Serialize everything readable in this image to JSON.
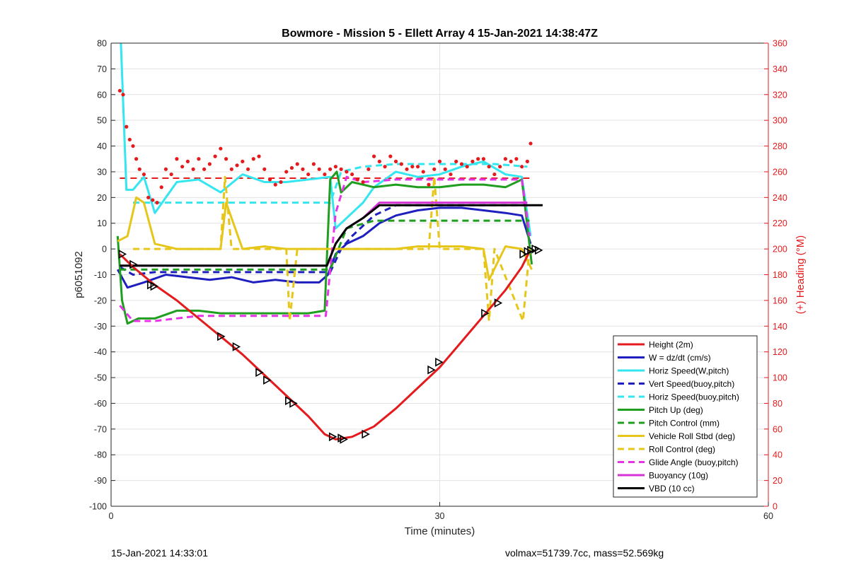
{
  "chart_data": {
    "type": "line",
    "title": "Bowmore - Mission 5 - Ellett Array 4 15-Jan-2021 14:38:47Z",
    "xlabel": "Time (minutes)",
    "ylabel": "p6051092",
    "y2label": "(+) Heading (°M)",
    "xlim": [
      0,
      60
    ],
    "ylim": [
      -100,
      80
    ],
    "y2lim": [
      0,
      360
    ],
    "xticks": [
      0,
      30,
      60
    ],
    "yticks": [
      -100,
      -90,
      -80,
      -70,
      -60,
      -50,
      -40,
      -30,
      -20,
      -10,
      0,
      10,
      20,
      30,
      40,
      50,
      60,
      70,
      80
    ],
    "y2ticks": [
      0,
      20,
      40,
      60,
      80,
      100,
      120,
      140,
      160,
      180,
      200,
      220,
      240,
      260,
      280,
      300,
      320,
      340,
      360
    ],
    "grid": true,
    "legend_position": "bottom-right",
    "colors": {
      "height": "#e41a1c",
      "w": "#1f1fbf",
      "horiz_w": "#33e6f0",
      "pitch": "#1f9e1f",
      "roll": "#e6c619",
      "glide": "#e633e6",
      "buoy": "#d633d6",
      "vbd": "#000000",
      "heading": "#e41a1c",
      "axis2": "#e41a1c"
    },
    "series": [
      {
        "name": "Height (2m)",
        "style": "solid",
        "color": "#e41a1c",
        "x": [
          0.8,
          2,
          4,
          6,
          8,
          10,
          12,
          14,
          16,
          18,
          19.5,
          20.5,
          22,
          24,
          26,
          28,
          30,
          32,
          34,
          36,
          37.5,
          38.2
        ],
        "y": [
          -2,
          -7,
          -14,
          -20,
          -27,
          -34,
          -41,
          -49,
          -57,
          -65,
          -72,
          -74,
          -73,
          -69,
          -62,
          -54,
          -46,
          -36,
          -26,
          -16,
          -7,
          -1
        ]
      },
      {
        "name": "W = dz/dt (cm/s)",
        "style": "solid",
        "color": "#1f1fbf",
        "x": [
          0.6,
          1.5,
          3,
          5,
          7,
          9,
          11,
          13,
          15,
          17,
          19,
          19.8,
          20.5,
          21.5,
          23,
          24.5,
          26,
          28,
          30,
          32,
          34,
          36,
          37.5,
          38.3
        ],
        "y": [
          -8,
          -15,
          -13,
          -10,
          -11,
          -12,
          -11,
          -13,
          -12,
          -13,
          -13,
          -10,
          -2,
          2,
          5,
          10,
          13,
          15,
          16,
          16,
          15,
          14,
          13,
          2
        ]
      },
      {
        "name": "Horiz Speed(W,pitch)",
        "style": "solid",
        "color": "#33e6f0",
        "x": [
          0.9,
          1.4,
          2,
          3,
          4,
          5,
          6,
          8,
          10,
          12,
          14,
          16,
          18,
          20,
          20.5,
          21,
          22,
          23,
          24,
          26,
          28,
          30,
          32,
          34,
          36,
          37.5,
          38.3
        ],
        "y": [
          80,
          23,
          23,
          28,
          14,
          20,
          26,
          27,
          22,
          29,
          26,
          26,
          27,
          28,
          8,
          10,
          14,
          18,
          24,
          30,
          28,
          29,
          32,
          34,
          29,
          28,
          5
        ]
      },
      {
        "name": "Vert Speed(buoy,pitch)",
        "style": "dash",
        "color": "#1f1fbf",
        "x": [
          0.8,
          2,
          4,
          6,
          8,
          10,
          12,
          14,
          16,
          18,
          20,
          21,
          22,
          24,
          26,
          28,
          30,
          32,
          34,
          36,
          38
        ],
        "y": [
          -7,
          -10,
          -9,
          -9,
          -9,
          -9,
          -9,
          -9,
          -9,
          -9,
          -9,
          0,
          5,
          13,
          17,
          17,
          17,
          17,
          17,
          17,
          17
        ]
      },
      {
        "name": "Horiz Speed(buoy,pitch)",
        "style": "dash",
        "color": "#33e6f0",
        "x": [
          2,
          5,
          8,
          11,
          14,
          17,
          20,
          21,
          23,
          26,
          29,
          32,
          35,
          38
        ],
        "y": [
          18,
          18,
          18,
          18,
          18,
          18,
          18,
          30,
          32,
          33,
          33,
          33,
          33,
          32
        ]
      },
      {
        "name": "Pitch Up (deg)",
        "style": "solid",
        "color": "#1f9e1f",
        "x": [
          0.6,
          1,
          1.5,
          2.5,
          4,
          6,
          8,
          10,
          12,
          14,
          16,
          18,
          19.5,
          20,
          20.6,
          21,
          22,
          24,
          26,
          28,
          30,
          32,
          34,
          36,
          37.5,
          38.4
        ],
        "y": [
          5,
          -20,
          -29,
          -27,
          -27,
          -24,
          -24,
          -25,
          -25,
          -25,
          -25,
          -25,
          -24,
          27,
          30,
          22,
          26,
          24,
          25,
          24,
          24,
          25,
          25,
          24,
          27,
          -6
        ]
      },
      {
        "name": "Pitch Control (mm)",
        "style": "dash",
        "color": "#1f9e1f",
        "x": [
          0.8,
          4,
          8,
          12,
          16,
          20,
          21.5,
          24,
          28,
          32,
          36,
          38.2
        ],
        "y": [
          -8,
          -8,
          -8,
          -8,
          -8,
          -8,
          8,
          11,
          11,
          11,
          11,
          11
        ]
      },
      {
        "name": "Vehicle Roll Stbd (deg)",
        "style": "solid",
        "color": "#e6c619",
        "x": [
          0.6,
          1.5,
          2.3,
          3,
          4,
          6,
          8,
          10,
          10.5,
          12,
          14,
          16,
          18,
          20,
          22,
          24,
          26,
          28,
          30,
          32,
          34,
          34.5,
          36,
          37.5,
          38.4
        ],
        "y": [
          3,
          5,
          20,
          18,
          2,
          0,
          0,
          0,
          18,
          0,
          1,
          0,
          0,
          0,
          0,
          0,
          0,
          1,
          1,
          1,
          0,
          -12,
          1,
          0,
          -8
        ]
      },
      {
        "name": "Roll Control (deg)",
        "style": "dash",
        "color": "#e6c619",
        "x": [
          2,
          5,
          8,
          10,
          10.4,
          11,
          14,
          16,
          16.3,
          17,
          20,
          23,
          26,
          29,
          29.5,
          30,
          33,
          34,
          34.5,
          35,
          37.6,
          38.2
        ],
        "y": [
          0,
          0,
          0,
          0,
          28,
          0,
          0,
          0,
          -28,
          0,
          0,
          0,
          0,
          0,
          28,
          0,
          0,
          0,
          -28,
          0,
          -28,
          0
        ]
      },
      {
        "name": "Glide Angle (buoy,pitch)",
        "style": "dash",
        "color": "#e633e6",
        "x": [
          0.8,
          2,
          4,
          8,
          12,
          16,
          19.6,
          20.5,
          21.5,
          23,
          26,
          30,
          34,
          37.5,
          38.2
        ],
        "y": [
          -22,
          -28,
          -28,
          -26,
          -26,
          -26,
          -26,
          14,
          28,
          26,
          27,
          27,
          27,
          27,
          5
        ]
      },
      {
        "name": "Buoyancy (10g)",
        "style": "solid",
        "color": "#d633d6",
        "x": [
          0.8,
          4,
          8,
          12,
          16,
          19.7,
          20.5,
          21.5,
          23,
          24.5,
          30,
          36,
          38
        ],
        "y": [
          -6.5,
          -6.5,
          -6.5,
          -6.5,
          -6.5,
          -6.5,
          2,
          8,
          12,
          18,
          18,
          18,
          18
        ]
      },
      {
        "name": "VBD (10 cc)",
        "style": "solid",
        "color": "#000000",
        "x": [
          0.8,
          4,
          8,
          12,
          16,
          19.7,
          20.5,
          21.5,
          23,
          24.5,
          30,
          36,
          39.4
        ],
        "y": [
          -6.5,
          -6.5,
          -6.5,
          -6.5,
          -6.5,
          -6.5,
          2,
          8,
          12,
          17,
          17,
          17,
          17
        ]
      }
    ],
    "reference_lines": [
      {
        "name": "Heading target",
        "style": "dash",
        "color": "#e41a1c",
        "axis": "y2",
        "y": 255,
        "x": [
          0.8,
          38.2
        ]
      }
    ],
    "heading_points": {
      "axis": "y2",
      "color": "#e41a1c",
      "x": [
        0.8,
        1.1,
        1.4,
        1.7,
        2,
        2.3,
        2.6,
        3,
        3.4,
        3.8,
        4.2,
        4.6,
        5,
        5.5,
        6,
        6.5,
        7,
        7.5,
        8,
        8.5,
        9,
        9.5,
        10,
        10.5,
        11,
        11.5,
        12,
        12.5,
        13,
        13.5,
        14,
        14.5,
        15,
        15.5,
        16,
        16.5,
        17,
        17.5,
        18,
        18.5,
        19,
        19.5,
        20,
        20.5,
        21,
        21.5,
        22,
        22.5,
        23,
        23.5,
        24,
        24.5,
        25,
        25.5,
        26,
        26.5,
        27,
        27.5,
        28,
        28.5,
        29,
        29.5,
        30,
        30.5,
        31,
        31.5,
        32,
        32.5,
        33,
        33.5,
        34,
        34.5,
        35,
        35.5,
        36,
        36.5,
        37,
        37.5,
        38,
        38.3
      ],
      "y": [
        323,
        320,
        295,
        285,
        280,
        270,
        262,
        258,
        240,
        238,
        236,
        248,
        262,
        258,
        270,
        264,
        268,
        262,
        270,
        262,
        266,
        272,
        278,
        270,
        262,
        265,
        268,
        262,
        270,
        272,
        262,
        254,
        250,
        252,
        260,
        263,
        266,
        262,
        258,
        266,
        262,
        258,
        262,
        264,
        262,
        260,
        258,
        254,
        252,
        262,
        272,
        268,
        264,
        272,
        268,
        266,
        262,
        264,
        264,
        260,
        250,
        262,
        268,
        262,
        258,
        268,
        266,
        264,
        268,
        270,
        270,
        264,
        258,
        264,
        270,
        268,
        270,
        264,
        268,
        282
      ]
    },
    "waypoint_markers": {
      "color": "#000000",
      "x": [
        1.0,
        2.0,
        3.6,
        3.9,
        10.0,
        11.4,
        13.5,
        14.2,
        16.2,
        16.6,
        20.2,
        21.0,
        21.2,
        23.2,
        29.2,
        29.9,
        34.1,
        35.3,
        37.6,
        38.0,
        38.3,
        38.7,
        39.0
      ],
      "y": [
        -2,
        -6,
        -14,
        -14.5,
        -34,
        -38,
        -48,
        -51,
        -59,
        -60,
        -73,
        -73.5,
        -74,
        -72,
        -47,
        -44,
        -25,
        -21,
        -2,
        -1,
        -0.5,
        0,
        -0.5
      ]
    }
  },
  "footer": {
    "left": "15-Jan-2021 14:33:01",
    "right": "volmax=51739.7cc, mass=52.569kg"
  }
}
